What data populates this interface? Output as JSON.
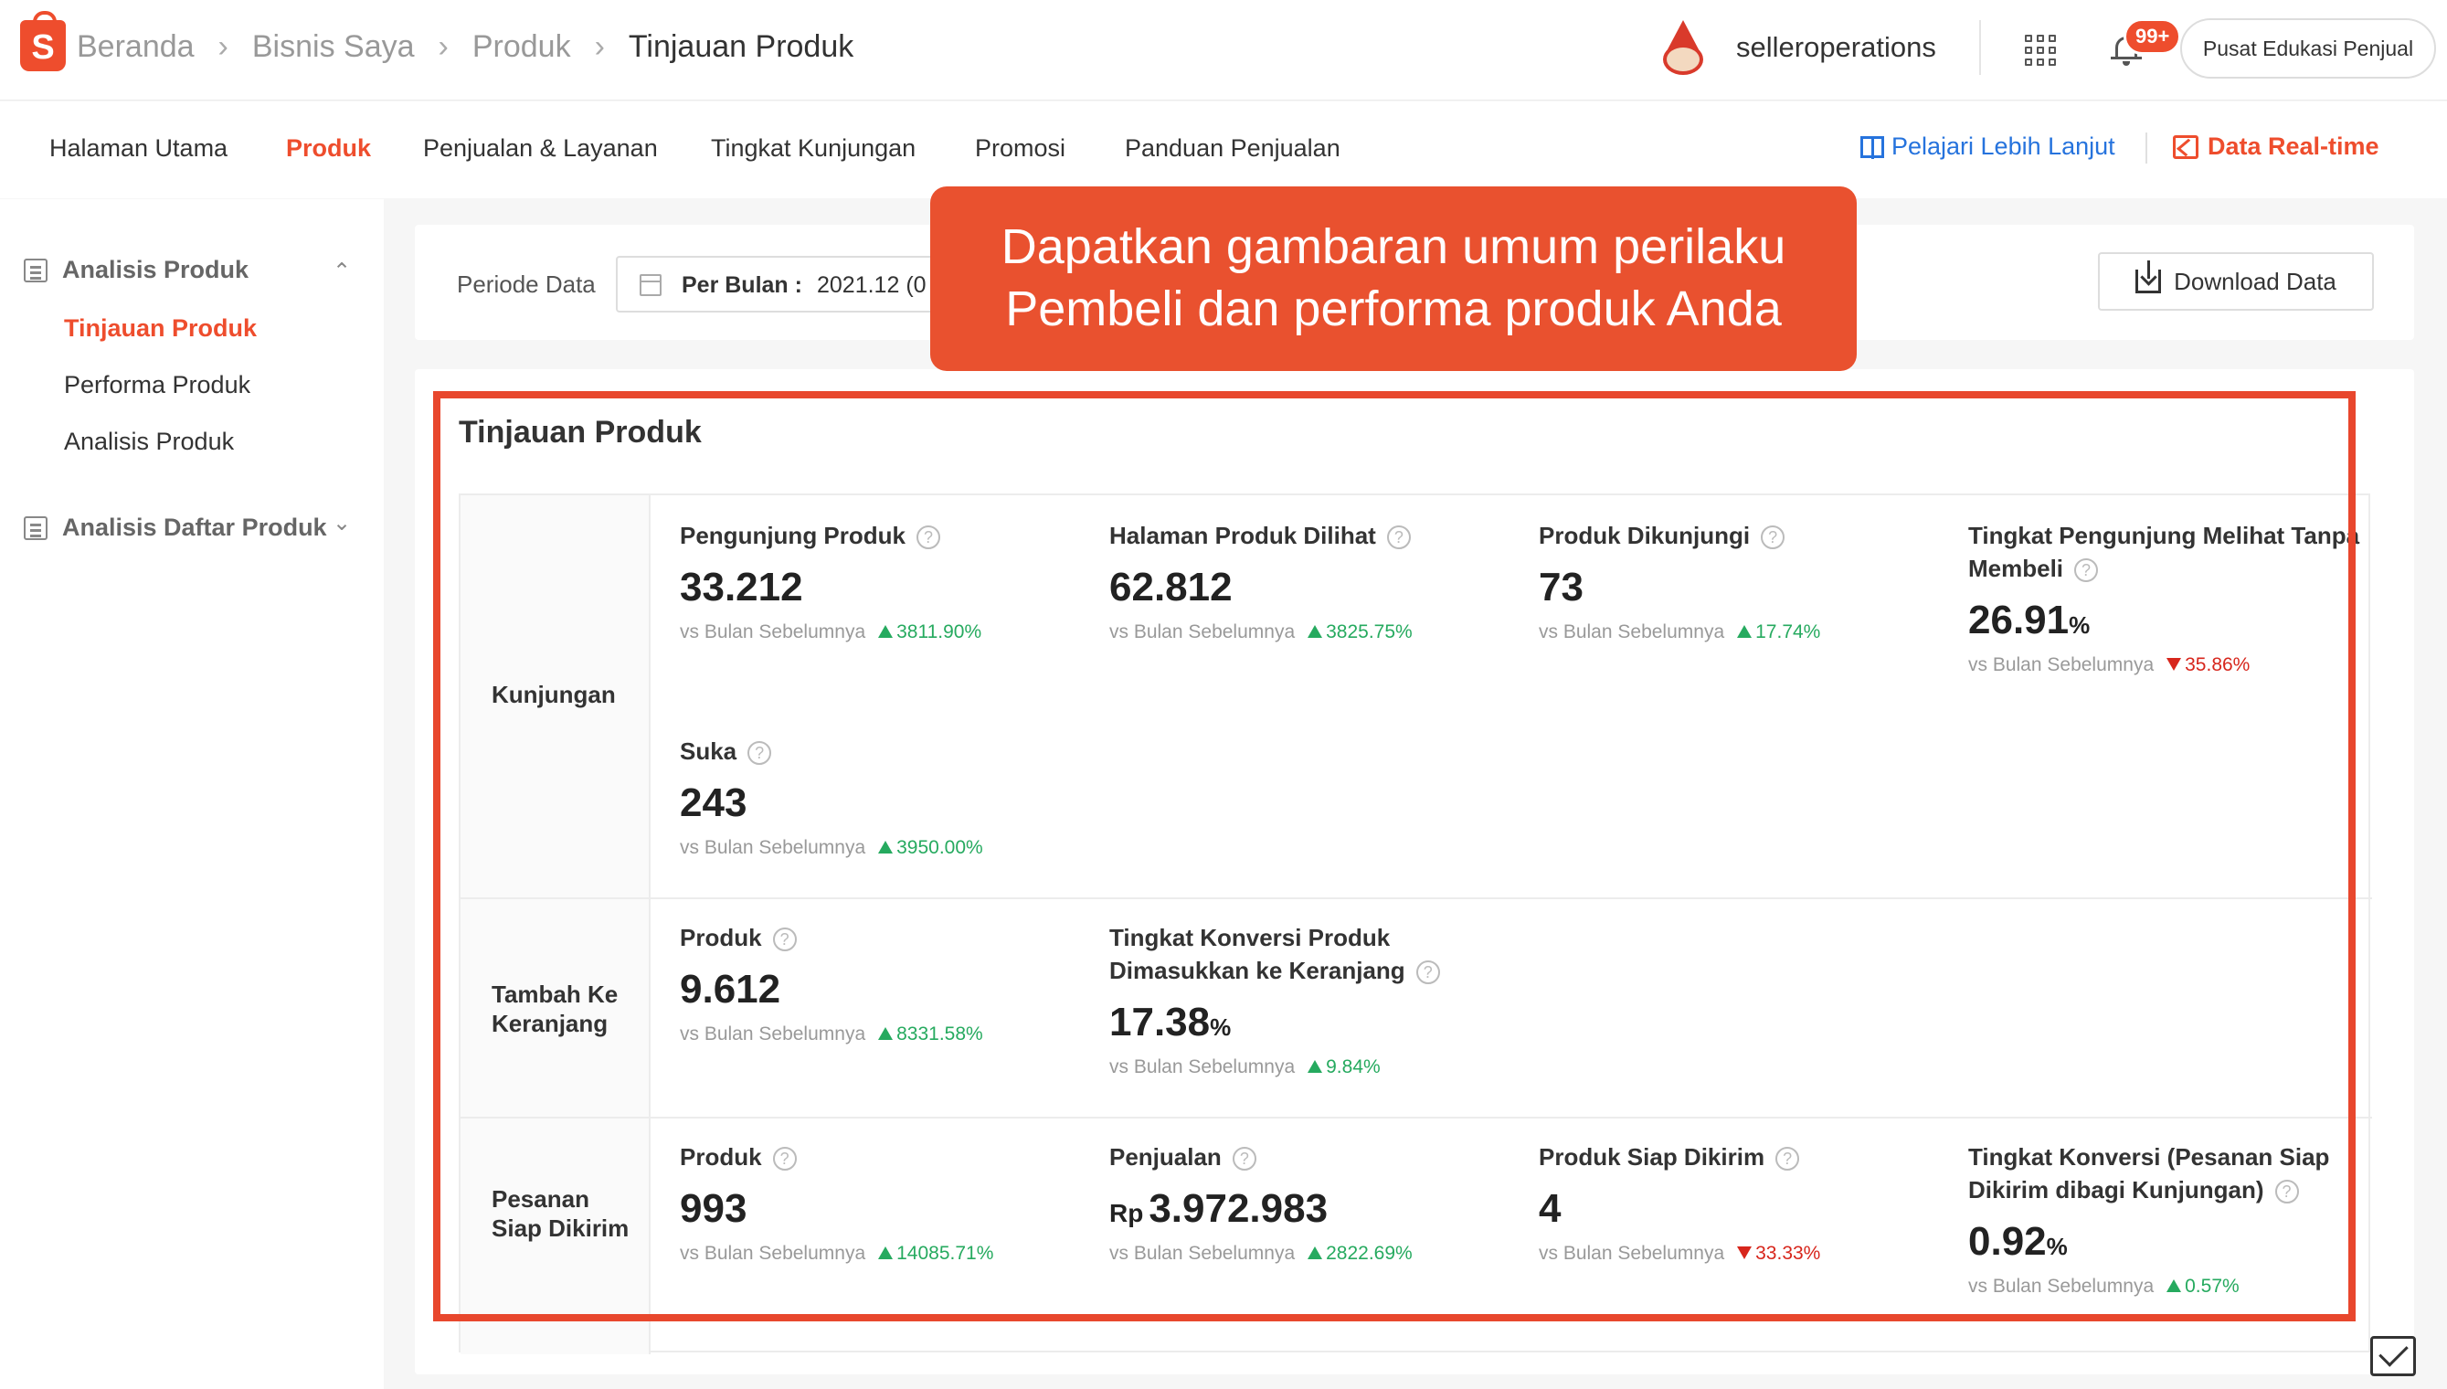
{
  "header": {
    "logo_letter": "S",
    "breadcrumbs": [
      "Beranda",
      "Bisnis Saya",
      "Produk",
      "Tinjauan Produk"
    ],
    "username": "selleroperations",
    "notification_count": "99+",
    "edu_button": "Pusat Edukasi Penjual"
  },
  "nav": {
    "items": [
      "Halaman Utama",
      "Produk",
      "Penjualan & Layanan",
      "Tingkat Kunjungan",
      "Promosi",
      "Panduan Penjualan"
    ],
    "active": "Produk",
    "learn_more": "Pelajari Lebih Lanjut",
    "realtime": "Data Real-time"
  },
  "sidebar": {
    "groups": [
      {
        "label": "Analisis Produk",
        "expanded": true,
        "items": [
          "Tinjauan Produk",
          "Performa Produk",
          "Analisis Produk"
        ],
        "active": "Tinjauan Produk"
      },
      {
        "label": "Analisis Daftar Produk",
        "expanded": false,
        "items": []
      }
    ]
  },
  "filter": {
    "label": "Periode Data",
    "period_type": "Per Bulan :",
    "period_value": "2021.12 (0",
    "download": "Download Data"
  },
  "callout": {
    "line1": "Dapatkan gambaran umum perilaku",
    "line2": "Pembeli dan performa produk Anda"
  },
  "overview": {
    "title": "Tinjauan Produk",
    "compare_label": "vs Bulan Sebelumnya",
    "sections": [
      {
        "label": "Kunjungan",
        "metrics": [
          {
            "title": "Pengunjung Produk",
            "value": "33.212",
            "unit": "",
            "delta": "3811.90%",
            "direction": "up"
          },
          {
            "title": "Halaman Produk Dilihat",
            "value": "62.812",
            "unit": "",
            "delta": "3825.75%",
            "direction": "up"
          },
          {
            "title": "Produk Dikunjungi",
            "value": "73",
            "unit": "",
            "delta": "17.74%",
            "direction": "up"
          },
          {
            "title": "Tingkat Pengunjung Melihat Tanpa Membeli",
            "value": "26.91",
            "unit": "%",
            "delta": "35.86%",
            "direction": "down"
          },
          {
            "title": "Suka",
            "value": "243",
            "unit": "",
            "delta": "3950.00%",
            "direction": "up"
          }
        ]
      },
      {
        "label": "Tambah Ke Keranjang",
        "metrics": [
          {
            "title": "Produk",
            "value": "9.612",
            "unit": "",
            "delta": "8331.58%",
            "direction": "up"
          },
          {
            "title": "Tingkat Konversi Produk Dimasukkan ke Keranjang",
            "value": "17.38",
            "unit": "%",
            "delta": "9.84%",
            "direction": "up"
          }
        ]
      },
      {
        "label": "Pesanan Siap Dikirim",
        "metrics": [
          {
            "title": "Produk",
            "value": "993",
            "unit": "",
            "delta": "14085.71%",
            "direction": "up"
          },
          {
            "title": "Penjualan",
            "currency": "Rp",
            "value": "3.972.983",
            "unit": "",
            "delta": "2822.69%",
            "direction": "up"
          },
          {
            "title": "Produk Siap Dikirim",
            "value": "4",
            "unit": "",
            "delta": "33.33%",
            "direction": "down"
          },
          {
            "title": "Tingkat Konversi (Pesanan Siap Dikirim dibagi Kunjungan)",
            "value": "0.92",
            "unit": "%",
            "delta": "0.57%",
            "direction": "up"
          }
        ]
      }
    ]
  },
  "colors": {
    "brand": "#ee4d2d",
    "link": "#2673dd",
    "positive": "#26aa5f",
    "negative": "#d7261c",
    "annotation": "#e9512f"
  }
}
